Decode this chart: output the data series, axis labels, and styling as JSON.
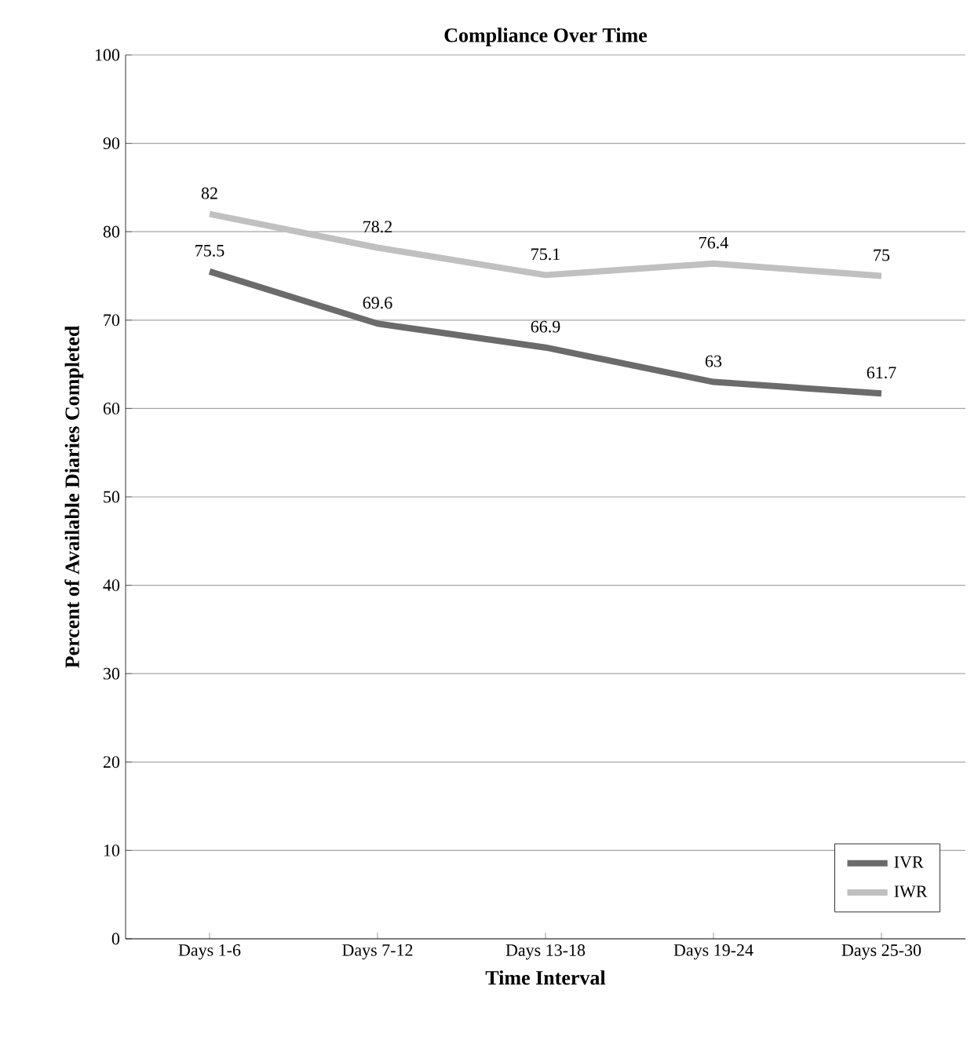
{
  "chart_data": {
    "type": "line",
    "title": "Compliance Over Time",
    "xlabel": "Time Interval",
    "ylabel": "Percent of Available Diaries Completed",
    "categories": [
      "Days 1-6",
      "Days 7-12",
      "Days 13-18",
      "Days 19-24",
      "Days 25-30"
    ],
    "series": [
      {
        "name": "IVR",
        "color": "#6b6b6b",
        "values": [
          75.5,
          69.6,
          66.9,
          63,
          61.7
        ]
      },
      {
        "name": "IWR",
        "color": "#c0c0c0",
        "values": [
          82,
          78.2,
          75.1,
          76.4,
          75
        ]
      }
    ],
    "ylim": [
      0,
      100
    ],
    "yticks": [
      0,
      10,
      20,
      30,
      40,
      50,
      60,
      70,
      80,
      90,
      100
    ],
    "grid": "y",
    "legend": "bottom right",
    "data_labels": true,
    "marker": "none",
    "line_style": "solid"
  }
}
